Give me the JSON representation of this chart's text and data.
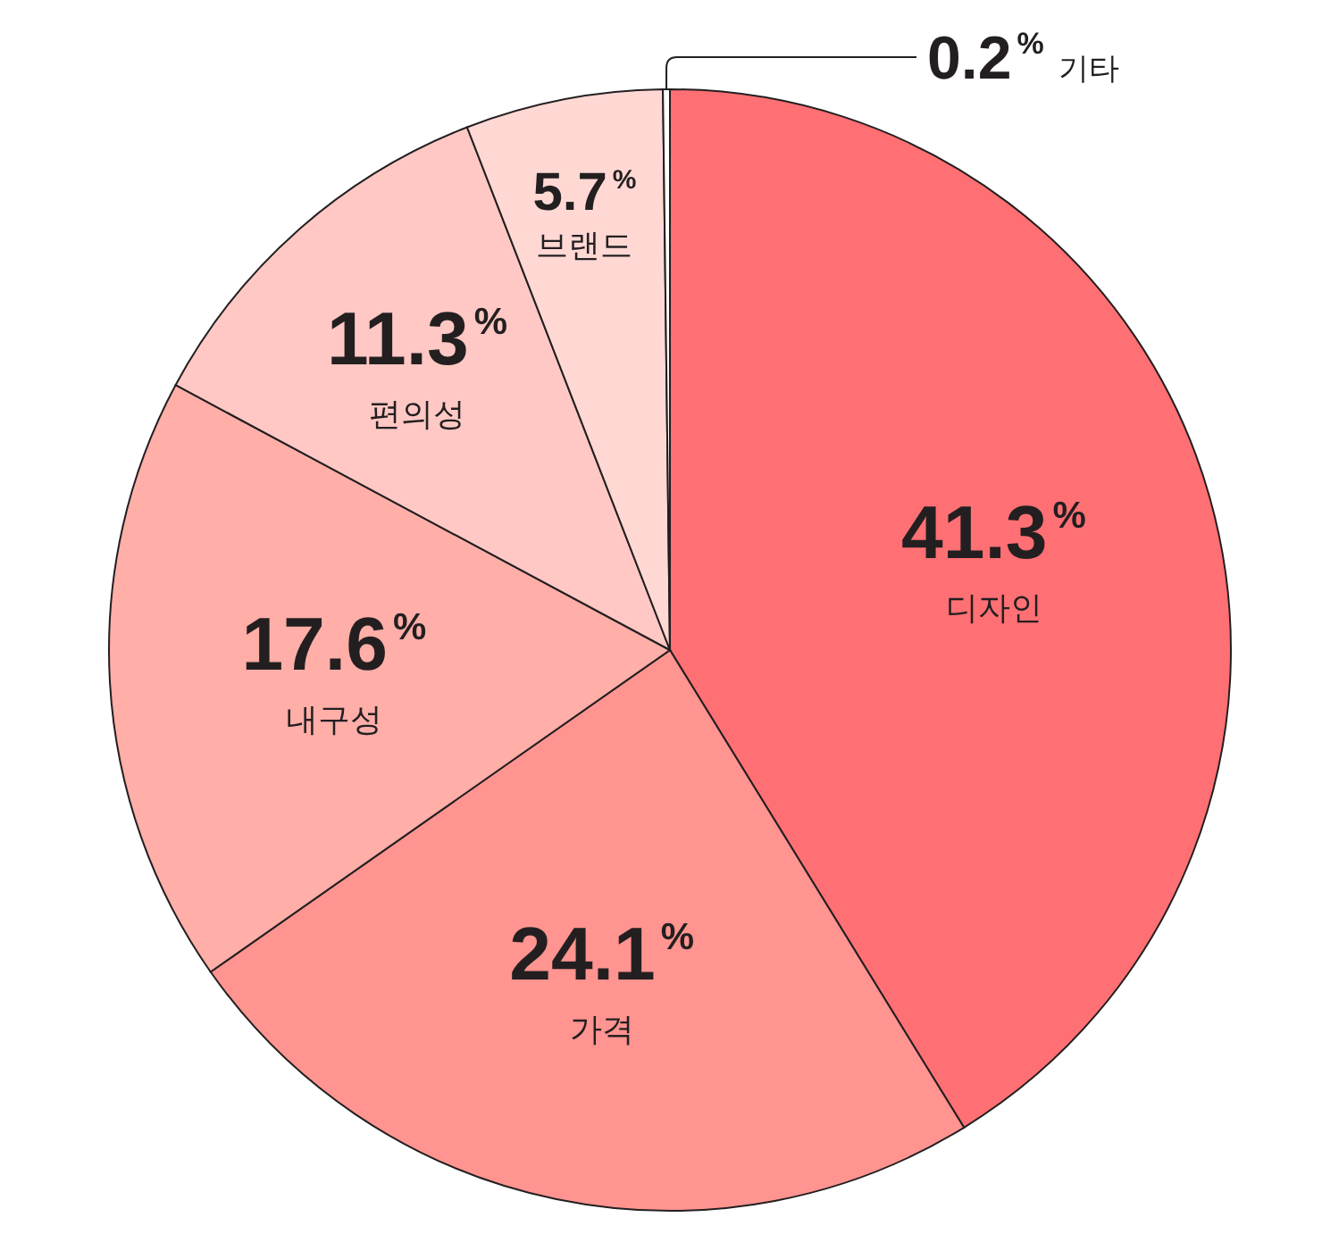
{
  "chart_data": {
    "type": "pie",
    "categories": [
      "디자인",
      "가격",
      "내구성",
      "편의성",
      "브랜드",
      "기타"
    ],
    "values": [
      41.3,
      24.1,
      17.6,
      11.3,
      5.7,
      0.2
    ],
    "colors": [
      "#ff7074",
      "#ff9490",
      "#ffaea8",
      "#ffc8c4",
      "#ffd8d4",
      "#ffffff"
    ],
    "value_labels": [
      "41.3$^{%}$",
      "24.1$^{%}$",
      "17.6$^{%}$",
      "11.3$^{%}$",
      "5.7$^{%}$",
      "0.2$^{%}$"
    ]
  }
}
